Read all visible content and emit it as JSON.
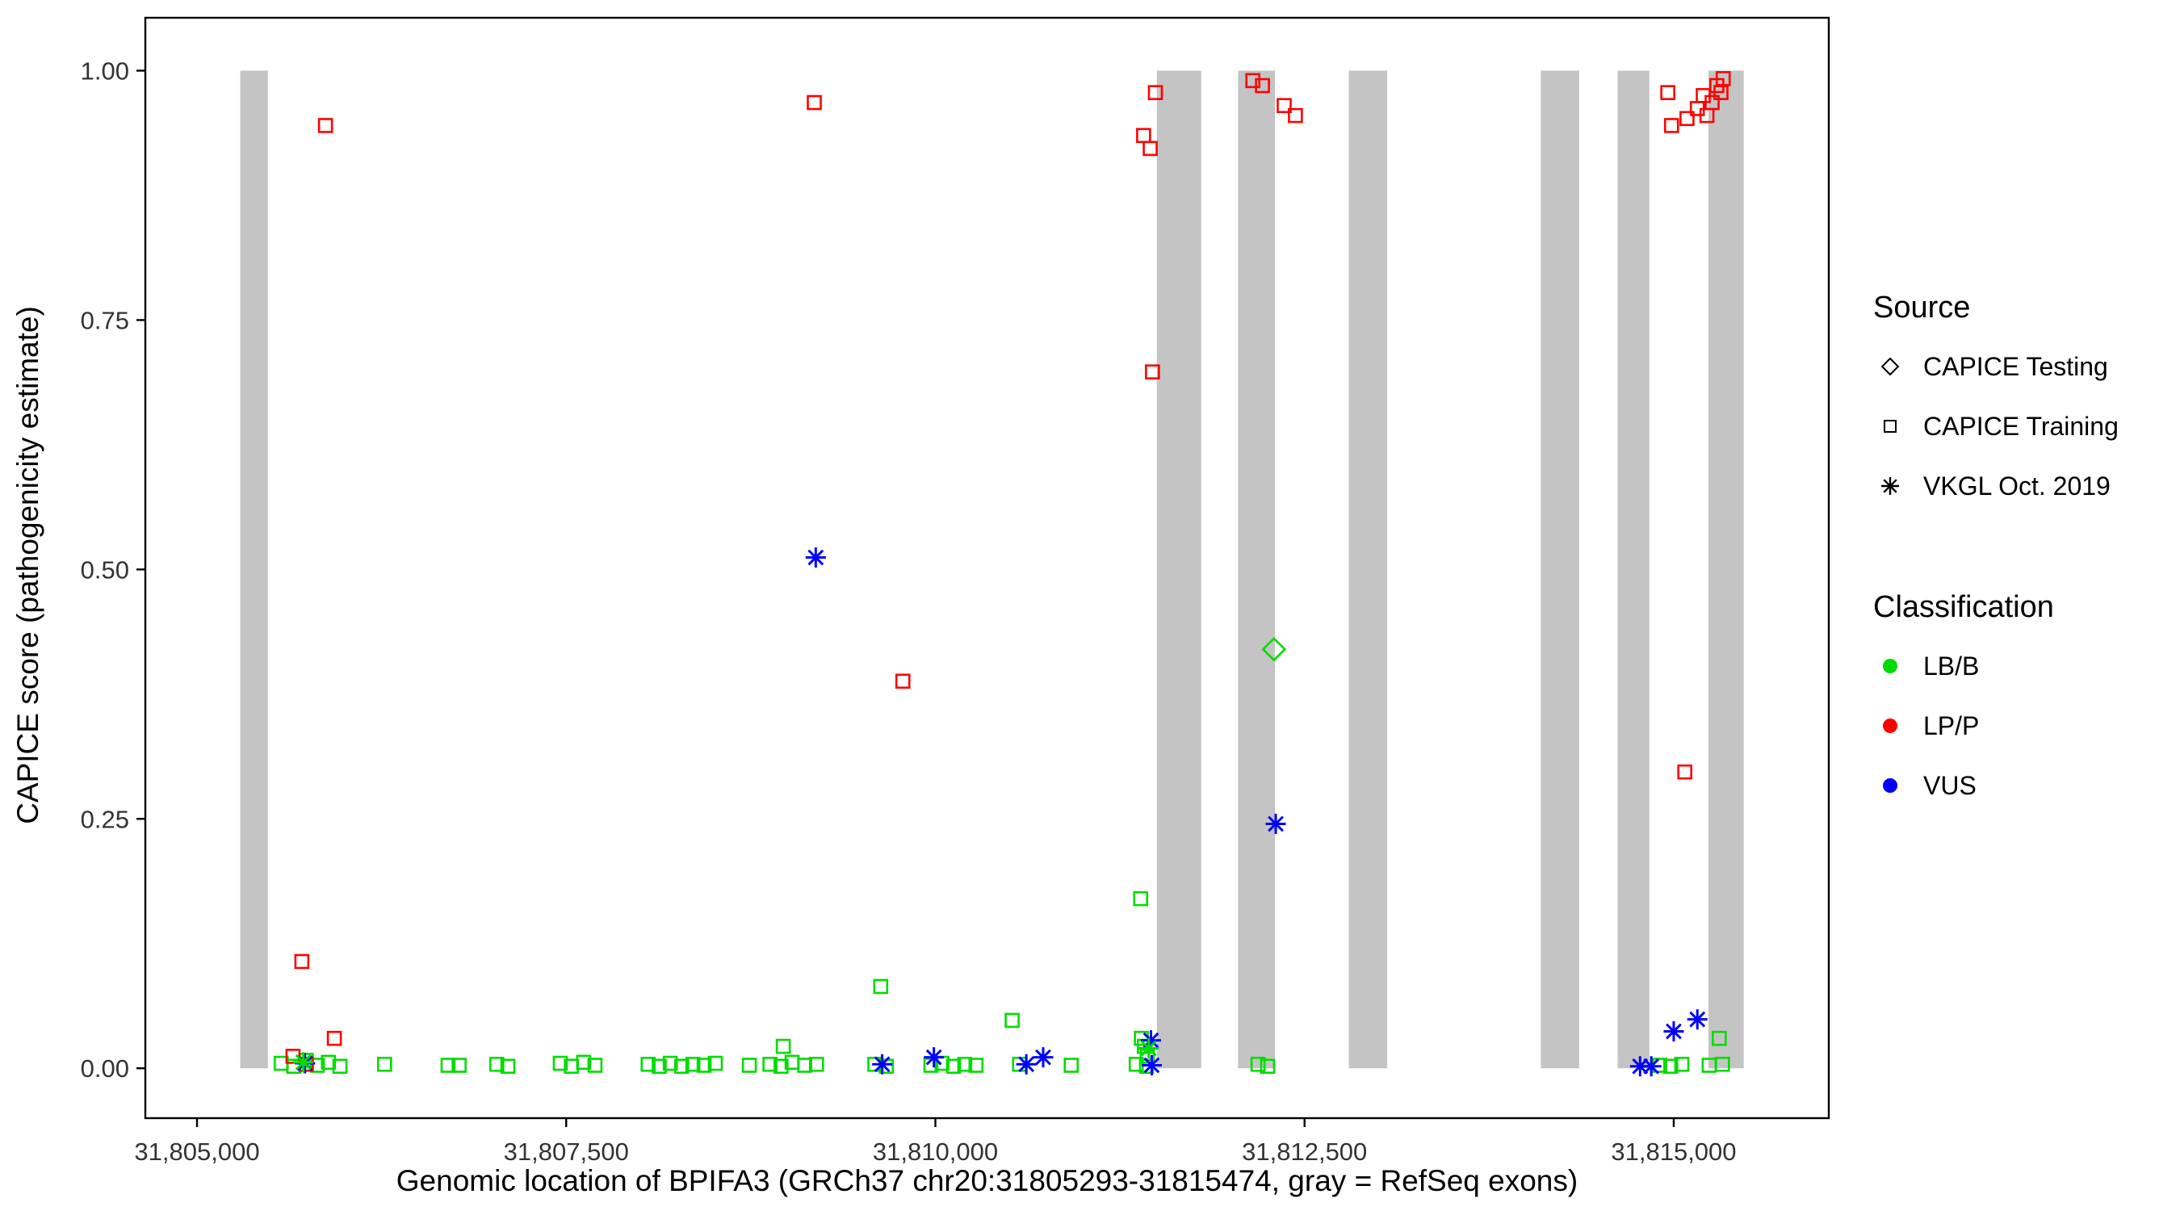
{
  "chart_data": {
    "type": "scatter",
    "title": "",
    "xlabel": "Genomic location of BPIFA3 (GRCh37 chr20:31805293-31815474, gray = RefSeq exons)",
    "ylabel": "CAPICE score (pathogenicity estimate)",
    "xlim": [
      31804650,
      31816050
    ],
    "ylim": [
      -0.05,
      1.053
    ],
    "grid": false,
    "panel_border": true,
    "exon_color": "#c4c4c4",
    "exons_note": "gray vertical bands = RefSeq exons",
    "x_ticks": [
      {
        "value": 31805000,
        "label": "31,805,000"
      },
      {
        "value": 31807500,
        "label": "31,807,500"
      },
      {
        "value": 31810000,
        "label": "31,810,000"
      },
      {
        "value": 31812500,
        "label": "31,812,500"
      },
      {
        "value": 31815000,
        "label": "31,815,000"
      }
    ],
    "y_ticks": [
      {
        "value": 0.0,
        "label": "0.00"
      },
      {
        "value": 0.25,
        "label": "0.25"
      },
      {
        "value": 0.5,
        "label": "0.50"
      },
      {
        "value": 0.75,
        "label": "0.75"
      },
      {
        "value": 1.0,
        "label": "1.00"
      }
    ],
    "exons": [
      [
        31805293,
        31805480
      ],
      [
        31811500,
        31811800
      ],
      [
        31812050,
        31812300
      ],
      [
        31812800,
        31813060
      ],
      [
        31814100,
        31814360
      ],
      [
        31814620,
        31814835
      ],
      [
        31815235,
        31815474
      ]
    ],
    "series": [
      {
        "name": "LB/B — CAPICE Training",
        "source": "CAPICE Training",
        "classification": "LB/B",
        "shape": "square",
        "color": "#00dc00",
        "points": [
          [
            31805570,
            0.005
          ],
          [
            31805655,
            0.002
          ],
          [
            31805740,
            0.008
          ],
          [
            31805815,
            0.003
          ],
          [
            31805890,
            0.006
          ],
          [
            31805968,
            0.002
          ],
          [
            31806270,
            0.004
          ],
          [
            31806700,
            0.003
          ],
          [
            31806775,
            0.003
          ],
          [
            31807030,
            0.004
          ],
          [
            31807105,
            0.002
          ],
          [
            31807460,
            0.005
          ],
          [
            31807535,
            0.002
          ],
          [
            31807618,
            0.006
          ],
          [
            31807695,
            0.003
          ],
          [
            31808055,
            0.004
          ],
          [
            31808130,
            0.002
          ],
          [
            31808205,
            0.005
          ],
          [
            31808282,
            0.002
          ],
          [
            31808358,
            0.004
          ],
          [
            31808434,
            0.003
          ],
          [
            31808510,
            0.005
          ],
          [
            31808740,
            0.003
          ],
          [
            31808880,
            0.004
          ],
          [
            31808955,
            0.002
          ],
          [
            31808970,
            0.022
          ],
          [
            31809030,
            0.006
          ],
          [
            31809115,
            0.003
          ],
          [
            31809195,
            0.004
          ],
          [
            31809590,
            0.004
          ],
          [
            31809630,
            0.082
          ],
          [
            31809668,
            0.002
          ],
          [
            31809970,
            0.003
          ],
          [
            31810045,
            0.005
          ],
          [
            31810123,
            0.002
          ],
          [
            31810199,
            0.004
          ],
          [
            31810275,
            0.003
          ],
          [
            31810520,
            0.048
          ],
          [
            31810570,
            0.004
          ],
          [
            31810920,
            0.003
          ],
          [
            31811360,
            0.004
          ],
          [
            31811390,
            0.17
          ],
          [
            31811395,
            0.03
          ],
          [
            31811415,
            0.022
          ],
          [
            31811435,
            0.012
          ],
          [
            31811430,
            0.002
          ],
          [
            31812185,
            0.004
          ],
          [
            31812250,
            0.002
          ],
          [
            31814905,
            0.003
          ],
          [
            31814980,
            0.002
          ],
          [
            31815055,
            0.004
          ],
          [
            31815240,
            0.003
          ],
          [
            31815308,
            0.03
          ],
          [
            31815330,
            0.004
          ]
        ]
      },
      {
        "name": "LP/P — CAPICE Training",
        "source": "CAPICE Training",
        "classification": "LP/P",
        "shape": "square",
        "color": "#ff0000",
        "points": [
          [
            31805650,
            0.012
          ],
          [
            31805710,
            0.107
          ],
          [
            31805740,
            0.004
          ],
          [
            31805870,
            0.945
          ],
          [
            31805930,
            0.03
          ],
          [
            31809180,
            0.968
          ],
          [
            31809780,
            0.388
          ],
          [
            31811410,
            0.935
          ],
          [
            31811455,
            0.922
          ],
          [
            31811490,
            0.978
          ],
          [
            31811470,
            0.698
          ],
          [
            31812150,
            0.99
          ],
          [
            31812215,
            0.985
          ],
          [
            31812362,
            0.965
          ],
          [
            31812438,
            0.955
          ],
          [
            31814960,
            0.978
          ],
          [
            31814985,
            0.945
          ],
          [
            31815090,
            0.952
          ],
          [
            31815160,
            0.962
          ],
          [
            31815200,
            0.975
          ],
          [
            31815225,
            0.955
          ],
          [
            31815260,
            0.968
          ],
          [
            31815292,
            0.985
          ],
          [
            31815320,
            0.978
          ],
          [
            31815335,
            0.992
          ],
          [
            31815075,
            0.297
          ]
        ]
      },
      {
        "name": "VUS — VKGL Oct. 2019",
        "source": "VKGL Oct. 2019",
        "classification": "VUS",
        "shape": "asterisk",
        "color": "#0000ff",
        "points": [
          [
            31805731,
            0.005
          ],
          [
            31809190,
            0.512
          ],
          [
            31809640,
            0.004
          ],
          [
            31809990,
            0.011
          ],
          [
            31810616,
            0.004
          ],
          [
            31810730,
            0.011
          ],
          [
            31811460,
            0.028
          ],
          [
            31811465,
            0.003
          ],
          [
            31812305,
            0.245
          ],
          [
            31814772,
            0.002
          ],
          [
            31814848,
            0.002
          ],
          [
            31815000,
            0.037
          ],
          [
            31815160,
            0.049
          ]
        ]
      },
      {
        "name": "LB/B — VKGL Oct. 2019",
        "source": "VKGL Oct. 2019",
        "classification": "LB/B",
        "shape": "asterisk",
        "color": "#00dc00",
        "points": [
          [
            31805720,
            0.006
          ],
          [
            31811445,
            0.02
          ]
        ]
      },
      {
        "name": "LB/B — CAPICE Testing",
        "source": "CAPICE Testing",
        "classification": "LB/B",
        "shape": "diamond",
        "color": "#00dc00",
        "points": [
          [
            31812293,
            0.42
          ]
        ]
      }
    ]
  },
  "legend": {
    "source": {
      "title": "Source",
      "items": [
        {
          "label": "CAPICE Testing",
          "shape": "diamond"
        },
        {
          "label": "CAPICE Training",
          "shape": "square"
        },
        {
          "label": "VKGL Oct. 2019",
          "shape": "asterisk"
        }
      ]
    },
    "classification": {
      "title": "Classification",
      "items": [
        {
          "label": "LB/B",
          "color": "#00dc00"
        },
        {
          "label": "LP/P",
          "color": "#ff0000"
        },
        {
          "label": "VUS",
          "color": "#0000ff"
        }
      ]
    }
  }
}
